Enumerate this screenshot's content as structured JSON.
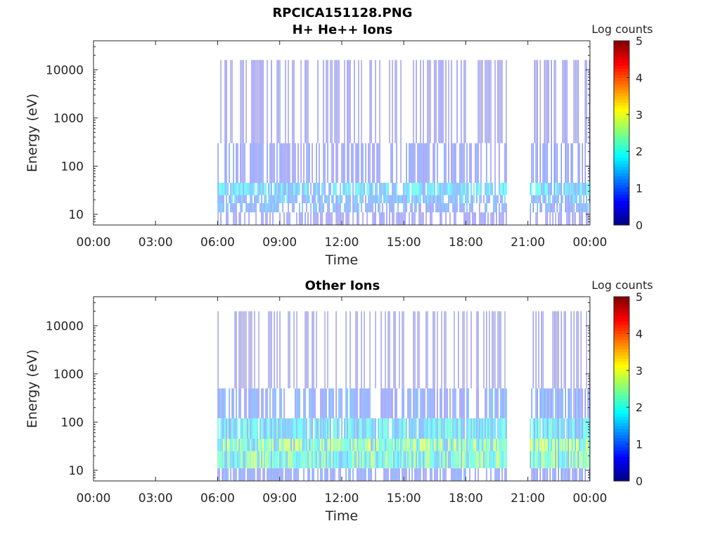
{
  "figure": {
    "title": "RPCICA151128.PNG"
  },
  "colors": {
    "axis": "#262626",
    "colormap": [
      "#00007f",
      "#0000ff",
      "#007fff",
      "#00ffff",
      "#7fff7f",
      "#ffff00",
      "#ff7f00",
      "#ff0000",
      "#7f0000"
    ]
  },
  "chart_data": [
    {
      "type": "heatmap",
      "title": "H+ He++ Ions",
      "xlabel": "Time",
      "ylabel": "Energy (eV)",
      "x_tick_labels": [
        "00:00",
        "03:00",
        "06:00",
        "09:00",
        "12:00",
        "15:00",
        "18:00",
        "21:00",
        "00:00"
      ],
      "x_ticks_hours": [
        0,
        3,
        6,
        9,
        12,
        15,
        18,
        21,
        24
      ],
      "xlim_hours": [
        0,
        24
      ],
      "y_scale": "log",
      "y_tick_values": [
        10,
        100,
        1000,
        10000
      ],
      "y_tick_labels": [
        "10",
        "100",
        "1000",
        "10000"
      ],
      "ylim": [
        6,
        40000
      ],
      "colorbar": {
        "label": "Log counts",
        "range": [
          0,
          5
        ],
        "tick_labels": [
          "0",
          "1",
          "2",
          "3",
          "4",
          "5"
        ]
      },
      "data_intervals_hours": [
        [
          6.0,
          19.95
        ],
        [
          21.1,
          24.0
        ]
      ],
      "bands": [
        {
          "energy_eV": [
            6,
            11
          ],
          "log_counts": 0.5
        },
        {
          "energy_eV": [
            11,
            17
          ],
          "log_counts": 1.0
        },
        {
          "energy_eV": [
            17,
            25
          ],
          "log_counts": 1.2
        },
        {
          "energy_eV": [
            25,
            45
          ],
          "log_counts": 1.5
        },
        {
          "energy_eV": [
            45,
            300
          ],
          "log_counts": 0.7
        },
        {
          "energy_eV": [
            300,
            16000
          ],
          "log_counts": 0.4
        }
      ]
    },
    {
      "type": "heatmap",
      "title": "Other Ions",
      "xlabel": "Time",
      "ylabel": "Energy (eV)",
      "x_tick_labels": [
        "00:00",
        "03:00",
        "06:00",
        "09:00",
        "12:00",
        "15:00",
        "18:00",
        "21:00",
        "00:00"
      ],
      "x_ticks_hours": [
        0,
        3,
        6,
        9,
        12,
        15,
        18,
        21,
        24
      ],
      "xlim_hours": [
        0,
        24
      ],
      "y_scale": "log",
      "y_tick_values": [
        10,
        100,
        1000,
        10000
      ],
      "y_tick_labels": [
        "10",
        "100",
        "1000",
        "10000"
      ],
      "ylim": [
        6,
        40000
      ],
      "colorbar": {
        "label": "Log counts",
        "range": [
          0,
          5
        ],
        "tick_labels": [
          "0",
          "1",
          "2",
          "3",
          "4",
          "5"
        ]
      },
      "data_intervals_hours": [
        [
          6.0,
          19.95
        ],
        [
          21.1,
          24.0
        ]
      ],
      "bands": [
        {
          "energy_eV": [
            6,
            11
          ],
          "log_counts": 0.8
        },
        {
          "energy_eV": [
            11,
            25
          ],
          "log_counts": 2.0
        },
        {
          "energy_eV": [
            25,
            45
          ],
          "log_counts": 2.2
        },
        {
          "energy_eV": [
            45,
            120
          ],
          "log_counts": 1.6
        },
        {
          "energy_eV": [
            120,
            500
          ],
          "log_counts": 0.9
        },
        {
          "energy_eV": [
            500,
            20000
          ],
          "log_counts": 0.3
        }
      ]
    }
  ]
}
